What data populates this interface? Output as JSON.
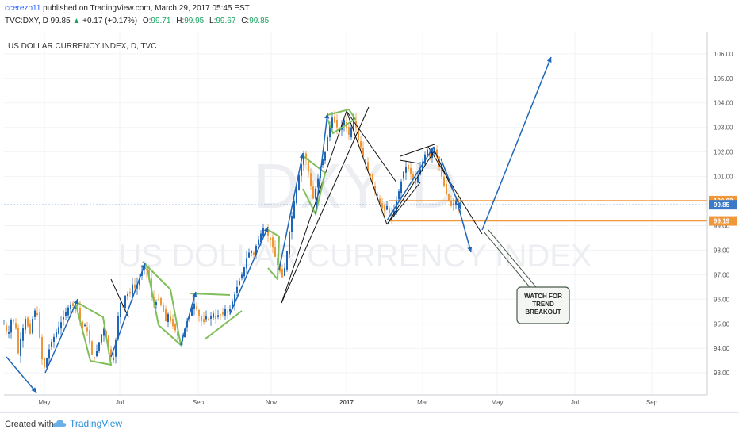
{
  "header": {
    "publisher": "ccerezo11",
    "publisher_text": " published on TradingView.com, March 29, 2017 05:45 EST",
    "symbol": "TVC:DXY, D",
    "last": "99.85",
    "change_arrow": "▲",
    "change": "+0.17 (+0.17%)",
    "o_label": "O:",
    "o": "99.71",
    "h_label": "H:",
    "h": "99.95",
    "l_label": "L:",
    "l": "99.67",
    "c_label": "C:",
    "c": "99.85"
  },
  "footer": {
    "created_with": "Created with",
    "brand": "TradingView",
    "brand_icon": "tradingview-cloud-icon"
  },
  "chart_data": {
    "type": "candlestick",
    "title": "US DOLLAR CURRENCY INDEX, D, TVC",
    "watermark_symbol": "DXY, D",
    "watermark_name": "US DOLLAR CURRENCY INDEX",
    "x_ticks": [
      "May",
      "Jul",
      "Sep",
      "Nov",
      "2017",
      "Mar",
      "May",
      "Jul",
      "Sep"
    ],
    "y_ticks": [
      93.0,
      94.0,
      95.0,
      96.0,
      97.0,
      98.0,
      99.0,
      100.0,
      101.0,
      102.0,
      103.0,
      104.0,
      105.0,
      106.0
    ],
    "ylim": [
      92.1,
      106.9
    ],
    "price_labels": [
      {
        "value": 100.02,
        "text": "100.02",
        "color": "#f0973a"
      },
      {
        "value": 99.85,
        "text": "99.85",
        "color": "#3a78c8"
      },
      {
        "value": 99.19,
        "text": "99.19",
        "color": "#f0973a"
      }
    ],
    "horizontal_levels": [
      100.02,
      99.19
    ],
    "current_price": 99.85,
    "annotation": "WATCH FOR TREND BREAKOUT",
    "colors": {
      "up": "#1f66b8",
      "down": "#f0973a",
      "wedge": "#7fbf5a",
      "arrow": "#1f66b8",
      "level": "#f0973a",
      "line": "#000000"
    },
    "path": [
      [
        0,
        95.0
      ],
      [
        5,
        94.5
      ],
      [
        10,
        95.3
      ],
      [
        15,
        94.8
      ],
      [
        18,
        93.8
      ],
      [
        22,
        94.6
      ],
      [
        27,
        95.2
      ],
      [
        33,
        94.6
      ],
      [
        38,
        95.6
      ],
      [
        43,
        95.3
      ],
      [
        46,
        94.0
      ],
      [
        50,
        93.1
      ],
      [
        54,
        93.6
      ],
      [
        59,
        94.2
      ],
      [
        65,
        94.6
      ],
      [
        71,
        95.0
      ],
      [
        77,
        95.4
      ],
      [
        83,
        95.8
      ],
      [
        88,
        95.7
      ],
      [
        92,
        95.9
      ],
      [
        95,
        95.2
      ],
      [
        99,
        94.8
      ],
      [
        103,
        95.0
      ],
      [
        107,
        94.4
      ],
      [
        110,
        93.8
      ],
      [
        114,
        93.6
      ],
      [
        118,
        94.0
      ],
      [
        122,
        94.5
      ],
      [
        126,
        94.8
      ],
      [
        130,
        94.4
      ],
      [
        133,
        93.9
      ],
      [
        137,
        93.4
      ],
      [
        140,
        94.0
      ],
      [
        143,
        95.0
      ],
      [
        146,
        95.9
      ],
      [
        150,
        95.7
      ],
      [
        154,
        96.3
      ],
      [
        158,
        96.1
      ],
      [
        162,
        96.6
      ],
      [
        166,
        96.4
      ],
      [
        170,
        96.8
      ],
      [
        175,
        97.2
      ],
      [
        179,
        97.3
      ],
      [
        183,
        96.8
      ],
      [
        186,
        96.1
      ],
      [
        190,
        95.8
      ],
      [
        195,
        96.0
      ],
      [
        200,
        95.6
      ],
      [
        204,
        95.1
      ],
      [
        207,
        95.4
      ],
      [
        211,
        95.0
      ],
      [
        215,
        94.8
      ],
      [
        219,
        94.5
      ],
      [
        223,
        94.3
      ],
      [
        227,
        94.7
      ],
      [
        231,
        95.1
      ],
      [
        235,
        95.5
      ],
      [
        239,
        95.9
      ],
      [
        243,
        95.6
      ],
      [
        247,
        95.2
      ],
      [
        251,
        95.0
      ],
      [
        255,
        95.3
      ],
      [
        259,
        95.1
      ],
      [
        263,
        95.5
      ],
      [
        267,
        95.2
      ],
      [
        271,
        95.4
      ],
      [
        275,
        95.3
      ],
      [
        279,
        95.6
      ],
      [
        283,
        95.4
      ],
      [
        287,
        95.8
      ],
      [
        291,
        96.2
      ],
      [
        295,
        96.6
      ],
      [
        299,
        96.9
      ],
      [
        303,
        97.3
      ],
      [
        307,
        97.8
      ],
      [
        311,
        98.0
      ],
      [
        315,
        97.8
      ],
      [
        319,
        98.3
      ],
      [
        323,
        98.6
      ],
      [
        327,
        98.9
      ],
      [
        331,
        98.7
      ],
      [
        335,
        98.5
      ],
      [
        339,
        98.1
      ],
      [
        343,
        97.6
      ],
      [
        347,
        97.2
      ],
      [
        351,
        96.9
      ],
      [
        355,
        97.4
      ],
      [
        359,
        98.5
      ],
      [
        363,
        99.4
      ],
      [
        367,
        100.2
      ],
      [
        371,
        100.9
      ],
      [
        375,
        101.5
      ],
      [
        378,
        101.9
      ],
      [
        381,
        101.7
      ],
      [
        384,
        101.2
      ],
      [
        387,
        100.6
      ],
      [
        390,
        100.1
      ],
      [
        393,
        100.5
      ],
      [
        396,
        100.9
      ],
      [
        399,
        101.4
      ],
      [
        402,
        101.7
      ],
      [
        405,
        102.0
      ],
      [
        408,
        102.6
      ],
      [
        411,
        103.1
      ],
      [
        414,
        103.4
      ],
      [
        417,
        103.2
      ],
      [
        420,
        103.0
      ],
      [
        423,
        102.8
      ],
      [
        426,
        103.1
      ],
      [
        429,
        103.3
      ],
      [
        432,
        103.0
      ],
      [
        435,
        102.7
      ],
      [
        438,
        103.0
      ],
      [
        441,
        103.4
      ],
      [
        444,
        103.0
      ],
      [
        447,
        102.5
      ],
      [
        450,
        102.2
      ],
      [
        453,
        101.8
      ],
      [
        456,
        101.5
      ],
      [
        459,
        101.2
      ],
      [
        462,
        101.0
      ],
      [
        465,
        100.7
      ],
      [
        468,
        100.4
      ],
      [
        471,
        100.2
      ],
      [
        474,
        99.9
      ],
      [
        477,
        99.7
      ],
      [
        480,
        99.6
      ],
      [
        483,
        99.8
      ],
      [
        486,
        99.5
      ],
      [
        489,
        99.3
      ],
      [
        492,
        99.6
      ],
      [
        495,
        100.0
      ],
      [
        498,
        100.4
      ],
      [
        501,
        100.8
      ],
      [
        504,
        101.2
      ],
      [
        507,
        101.4
      ],
      [
        510,
        101.3
      ],
      [
        513,
        101.1
      ],
      [
        516,
        100.9
      ],
      [
        519,
        100.7
      ],
      [
        522,
        101.0
      ],
      [
        525,
        101.3
      ],
      [
        528,
        101.6
      ],
      [
        531,
        101.9
      ],
      [
        534,
        102.1
      ],
      [
        537,
        101.8
      ],
      [
        540,
        102.0
      ],
      [
        543,
        102.2
      ],
      [
        546,
        101.8
      ],
      [
        549,
        101.4
      ],
      [
        552,
        101.0
      ],
      [
        555,
        100.6
      ],
      [
        558,
        100.3
      ],
      [
        561,
        100.0
      ],
      [
        564,
        99.8
      ],
      [
        567,
        99.9
      ],
      [
        570,
        100.0
      ],
      [
        573,
        99.7
      ],
      [
        576,
        99.85
      ]
    ]
  }
}
